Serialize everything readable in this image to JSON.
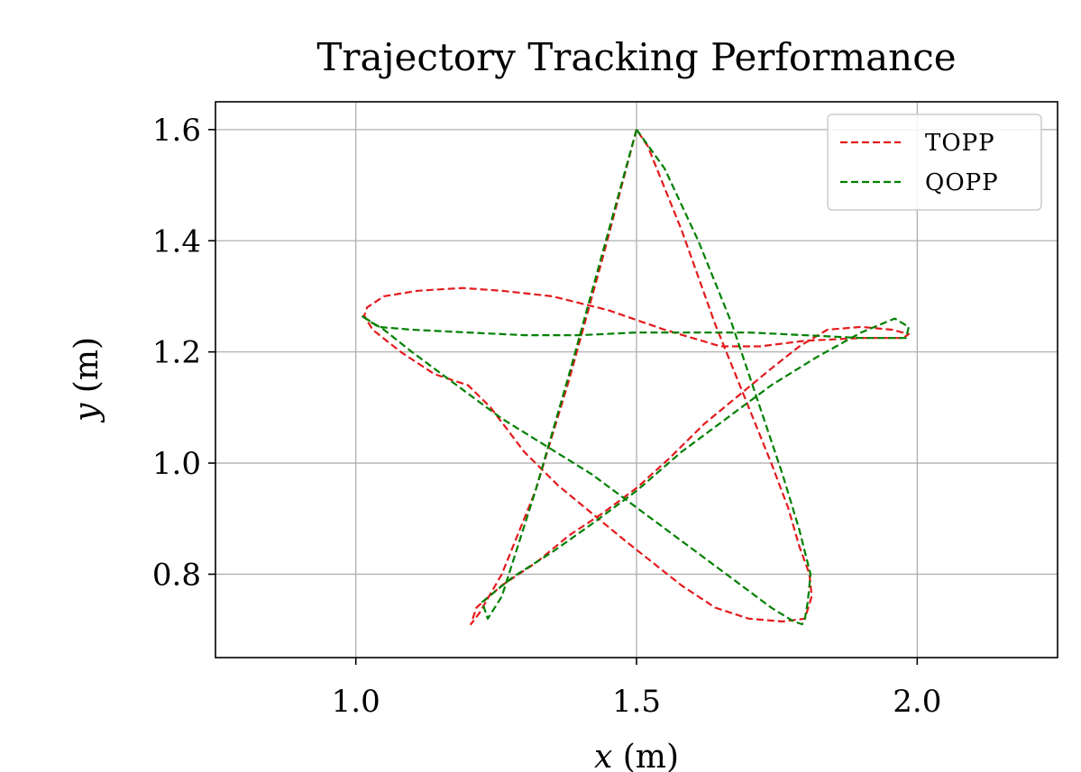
{
  "chart_data": {
    "type": "line",
    "title": "Trajectory Tracking Performance",
    "xlabel_var": "x",
    "xlabel_unit": "(m)",
    "ylabel_var": "y",
    "ylabel_unit": "(m)",
    "xlim": [
      0.75,
      2.25
    ],
    "ylim": [
      0.65,
      1.65
    ],
    "xticks": [
      1.0,
      1.5,
      2.0
    ],
    "xtick_labels": [
      "1.0",
      "1.5",
      "2.0"
    ],
    "yticks": [
      0.8,
      1.0,
      1.2,
      1.4,
      1.6
    ],
    "ytick_labels": [
      "0.8",
      "1.0",
      "1.2",
      "1.4",
      "1.6"
    ],
    "grid": true,
    "legend_position": "top-right",
    "series": [
      {
        "name": "TOPP",
        "color": "#e41a1c",
        "linestyle": "dashed",
        "x": [
          1.5,
          1.44,
          1.38,
          1.32,
          1.26,
          1.22,
          1.205,
          1.215,
          1.26,
          1.32,
          1.38,
          1.44,
          1.5,
          1.56,
          1.62,
          1.68,
          1.74,
          1.79,
          1.84,
          1.9,
          1.955,
          1.985,
          1.975,
          1.9,
          1.8,
          1.72,
          1.65,
          1.55,
          1.45,
          1.35,
          1.26,
          1.19,
          1.11,
          1.05,
          1.02,
          1.015,
          1.03,
          1.08,
          1.14,
          1.2,
          1.24,
          1.3,
          1.36,
          1.42,
          1.48,
          1.53,
          1.58,
          1.64,
          1.7,
          1.76,
          1.8,
          1.812,
          1.808,
          1.79,
          1.77,
          1.74,
          1.7,
          1.64,
          1.58,
          1.52,
          1.5
        ],
        "y": [
          1.6,
          1.37,
          1.15,
          0.95,
          0.8,
          0.73,
          0.71,
          0.74,
          0.78,
          0.82,
          0.87,
          0.91,
          0.955,
          1.01,
          1.07,
          1.12,
          1.17,
          1.21,
          1.24,
          1.245,
          1.24,
          1.232,
          1.225,
          1.225,
          1.22,
          1.21,
          1.21,
          1.24,
          1.275,
          1.3,
          1.31,
          1.315,
          1.31,
          1.3,
          1.28,
          1.265,
          1.24,
          1.2,
          1.16,
          1.14,
          1.1,
          1.02,
          0.96,
          0.91,
          0.86,
          0.82,
          0.78,
          0.74,
          0.72,
          0.715,
          0.72,
          0.76,
          0.8,
          0.85,
          0.92,
          1.0,
          1.1,
          1.25,
          1.42,
          1.57,
          1.6
        ]
      },
      {
        "name": "QOPP",
        "color": "#008000",
        "linestyle": "dashed",
        "x": [
          1.5,
          1.44,
          1.38,
          1.32,
          1.26,
          1.235,
          1.225,
          1.28,
          1.35,
          1.42,
          1.5,
          1.58,
          1.66,
          1.74,
          1.82,
          1.9,
          1.96,
          1.985,
          1.98,
          1.9,
          1.8,
          1.7,
          1.6,
          1.5,
          1.4,
          1.3,
          1.2,
          1.1,
          1.04,
          1.01,
          1.015,
          1.05,
          1.1,
          1.18,
          1.26,
          1.34,
          1.42,
          1.5,
          1.58,
          1.66,
          1.74,
          1.78,
          1.795,
          1.8,
          1.805,
          1.81,
          1.79,
          1.76,
          1.72,
          1.67,
          1.61,
          1.55,
          1.5
        ],
        "y": [
          1.6,
          1.38,
          1.16,
          0.95,
          0.76,
          0.72,
          0.75,
          0.795,
          0.84,
          0.89,
          0.95,
          1.02,
          1.08,
          1.14,
          1.19,
          1.235,
          1.26,
          1.245,
          1.225,
          1.225,
          1.23,
          1.235,
          1.235,
          1.235,
          1.23,
          1.23,
          1.235,
          1.24,
          1.245,
          1.265,
          1.262,
          1.24,
          1.2,
          1.14,
          1.08,
          1.03,
          0.98,
          0.92,
          0.86,
          0.8,
          0.74,
          0.715,
          0.71,
          0.72,
          0.75,
          0.8,
          0.88,
          0.98,
          1.1,
          1.25,
          1.4,
          1.53,
          1.6
        ]
      }
    ]
  }
}
